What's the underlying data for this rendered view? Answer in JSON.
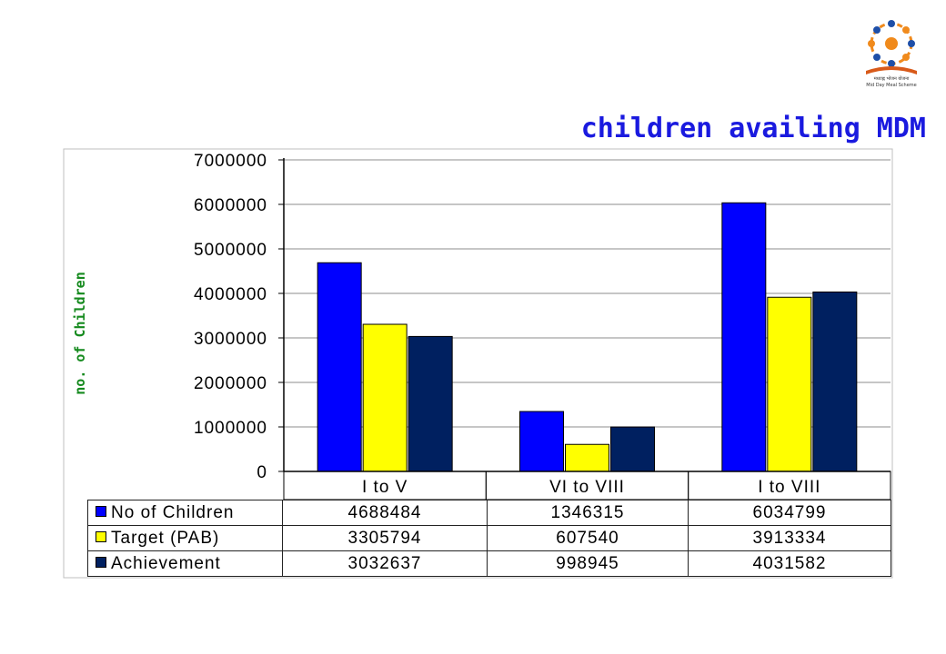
{
  "header": {
    "title": "children availing MDM",
    "logo_text_line1": "मध्याह्न भोजन योजना",
    "logo_text_line2": "Mid Day Meal Scheme"
  },
  "colors": {
    "no_of_children": "#0000ff",
    "target_pab": "#ffff00",
    "achievement": "#002060",
    "title": "#1a1adf",
    "y_label": "#158a1e"
  },
  "chart_data": {
    "type": "bar",
    "title": "children availing MDM",
    "xlabel": "",
    "ylabel": "no. of Children",
    "ylim": [
      0,
      7000000
    ],
    "yticks": [
      0,
      1000000,
      2000000,
      3000000,
      4000000,
      5000000,
      6000000,
      7000000
    ],
    "ytick_labels": [
      "0",
      "1000000",
      "2000000",
      "3000000",
      "4000000",
      "5000000",
      "6000000",
      "7000000"
    ],
    "grid": true,
    "legend": "data-table-below",
    "categories": [
      "I to V",
      "VI to VIII",
      "I to VIII"
    ],
    "series": [
      {
        "name": "No of Children",
        "color": "#0000ff",
        "values": [
          4688484,
          1346315,
          6034799
        ],
        "labels": [
          "4688484",
          "1346315",
          "6034799"
        ]
      },
      {
        "name": "Target (PAB)",
        "color": "#ffff00",
        "values": [
          3305794,
          607540,
          3913334
        ],
        "labels": [
          "3305794",
          "607540",
          "3913334"
        ]
      },
      {
        "name": "Achievement",
        "color": "#002060",
        "values": [
          3032637,
          998945,
          4031582
        ],
        "labels": [
          "3032637",
          "998945",
          "4031582"
        ]
      }
    ]
  }
}
